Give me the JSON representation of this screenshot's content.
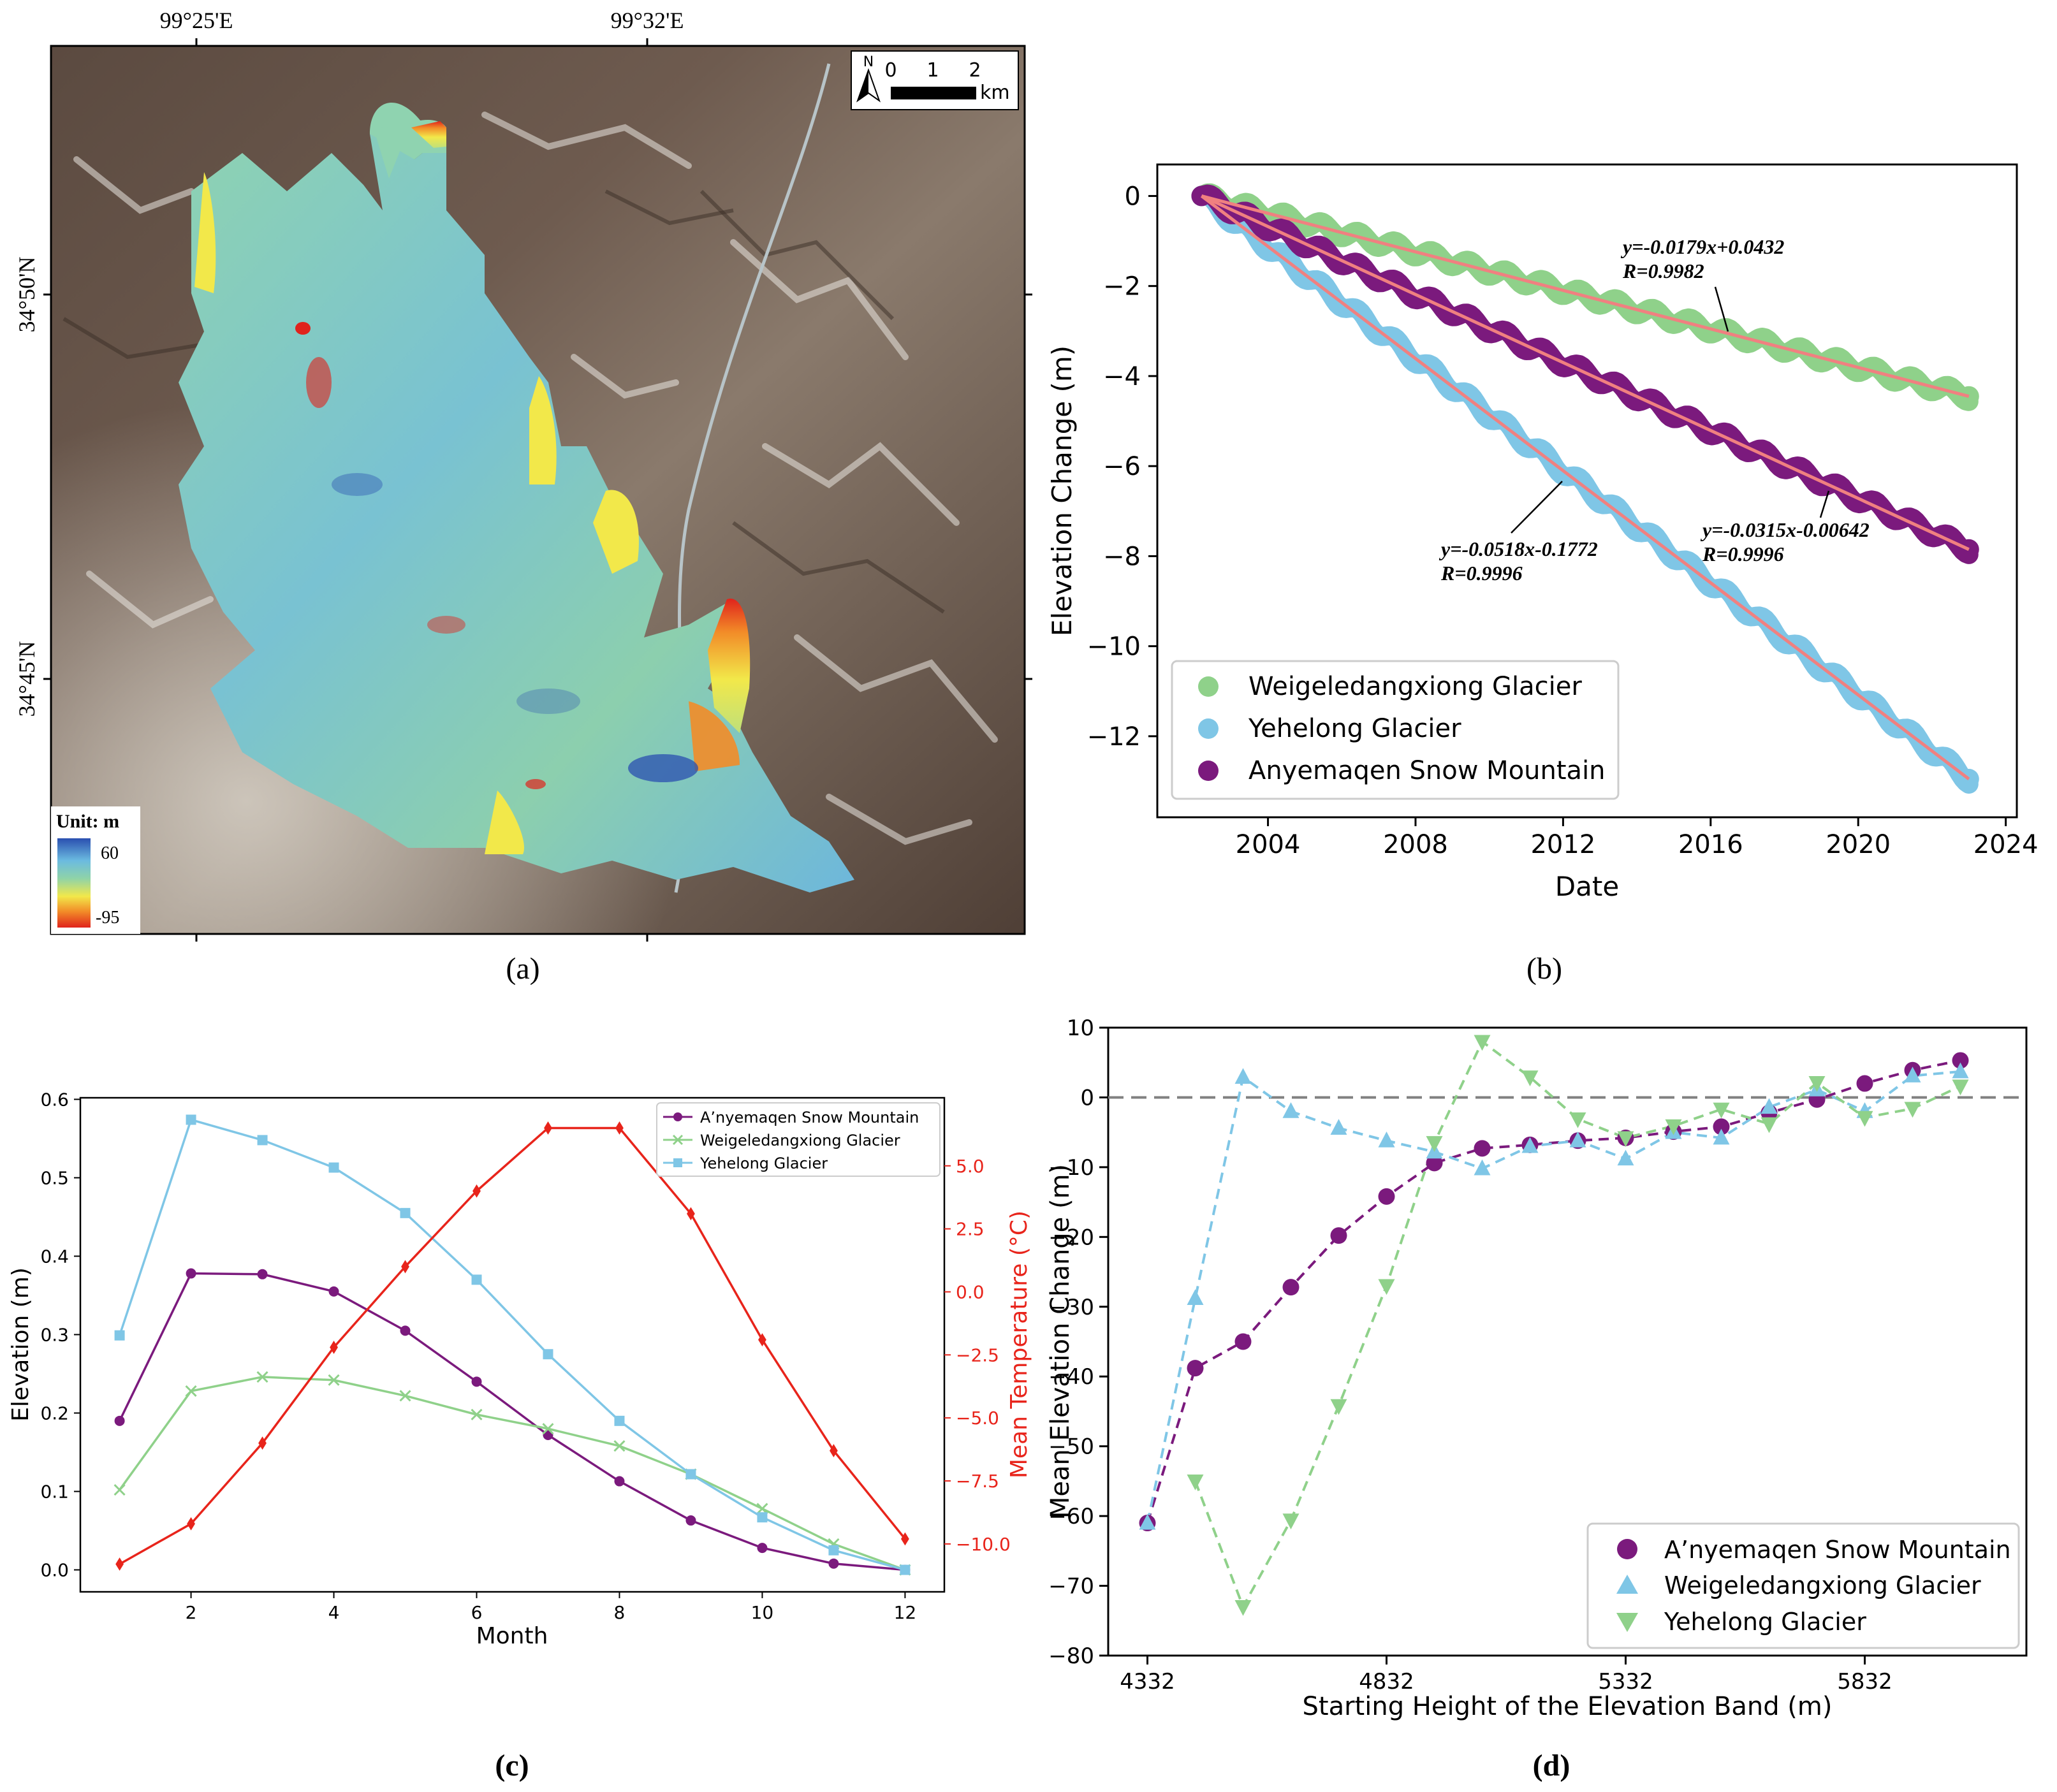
{
  "figure_labels": {
    "a": "(a)",
    "b": "(b)",
    "c": "(c)",
    "d": "(d)"
  },
  "map_a": {
    "lon_labels": [
      "99°25'E",
      "99°32'E"
    ],
    "lat_labels": [
      "34°50'N",
      "34°45'N"
    ],
    "north_symbol": "N",
    "scale_labels": [
      "0",
      "1",
      "2"
    ],
    "scale_unit": "km",
    "legend_title": "Unit: m",
    "legend_max": "60",
    "legend_min": "-95",
    "colors": {
      "high": "#2a4fb0",
      "mid_blue": "#6bbbe0",
      "mid": "#8fd3a8",
      "yellow": "#f2e84a",
      "orange": "#f28c28",
      "low": "#e0231c"
    }
  },
  "chart_data": [
    {
      "id": "b",
      "type": "line",
      "xlabel": "Date",
      "ylabel": "Elevation Change (m)",
      "xlim": [
        2001.0,
        2024.3
      ],
      "ylim": [
        -13.8,
        0.7
      ],
      "xticks": [
        2004,
        2008,
        2012,
        2016,
        2020,
        2024
      ],
      "yticks": [
        0,
        -2,
        -4,
        -6,
        -8,
        -10,
        -12
      ],
      "x_start": 2002.2,
      "x_end": 2023.0,
      "series": [
        {
          "name": "Weigeledangxiong Glacier",
          "color": "#8fd18a",
          "slope": -0.2148,
          "end_value": -4.45,
          "fit": "y=-0.0179x+0.0432",
          "r": "R=0.9982"
        },
        {
          "name": "Yehelong Glacier",
          "color": "#7fc6e6",
          "slope": -0.6216,
          "end_value": -12.95,
          "fit": "y=-0.0518x-0.1772",
          "r": "R=0.9996"
        },
        {
          "name": "Anyemaqen Snow Mountain",
          "color": "#7b1a7d",
          "slope": -0.378,
          "end_value": -7.85,
          "fit": "y=-0.0315x-0.00642",
          "r": "R=0.9996"
        }
      ],
      "fit_color": "#f08080",
      "legend_position": "lower-left"
    },
    {
      "id": "c",
      "type": "line",
      "xlabel": "Month",
      "ylabel": "Elevation (m)",
      "y2label": "Mean Temperature (°C)",
      "x": [
        1,
        2,
        3,
        4,
        5,
        6,
        7,
        8,
        9,
        10,
        11,
        12
      ],
      "xlim": [
        0.45,
        12.55
      ],
      "ylim": [
        -0.028,
        0.602
      ],
      "y2lim": [
        -11.9,
        7.7
      ],
      "xticks": [
        2,
        4,
        6,
        8,
        10,
        12
      ],
      "yticks": [
        0.0,
        0.1,
        0.2,
        0.3,
        0.4,
        0.5,
        0.6
      ],
      "ytick_labels": [
        "0.0",
        "0.1",
        "0.2",
        "0.3",
        "0.4",
        "0.5",
        "0.6"
      ],
      "y2ticks": [
        5.0,
        2.5,
        0.0,
        -2.5,
        -5.0,
        -7.5,
        -10.0
      ],
      "y2tick_labels": [
        "5.0",
        "2.5",
        "0.0",
        "−2.5",
        "−5.0",
        "−7.5",
        "−10.0"
      ],
      "series": [
        {
          "name": "A’nyemaqen Snow Mountain",
          "color": "#7b1a7d",
          "marker": "circle",
          "values": [
            0.19,
            0.378,
            0.377,
            0.355,
            0.305,
            0.24,
            0.172,
            0.113,
            0.063,
            0.028,
            0.008,
            0.0
          ]
        },
        {
          "name": "Weigeledangxiong Glacier",
          "color": "#8fd18a",
          "marker": "x",
          "values": [
            0.102,
            0.228,
            0.246,
            0.242,
            0.222,
            0.198,
            0.18,
            0.158,
            0.122,
            0.078,
            0.033,
            0.0
          ]
        },
        {
          "name": "Yehelong Glacier",
          "color": "#7fc6e6",
          "marker": "square",
          "values": [
            0.299,
            0.574,
            0.548,
            0.513,
            0.455,
            0.37,
            0.275,
            0.19,
            0.122,
            0.067,
            0.025,
            0.0
          ]
        }
      ],
      "temperature": {
        "name": "Mean Temperature",
        "color": "#e8241b",
        "marker": "diamond",
        "values": [
          -10.8,
          -9.2,
          -6.0,
          -2.2,
          1.0,
          4.0,
          6.5,
          6.5,
          3.1,
          -1.9,
          -6.3,
          -9.8
        ]
      },
      "legend_position": "top-right"
    },
    {
      "id": "d",
      "type": "line",
      "xlabel": "Starting Height of the Elevation Band (m)",
      "ylabel": "Mean Elevation Change (m)",
      "xlim": [
        4250,
        6170
      ],
      "ylim": [
        -80,
        10
      ],
      "xticks": [
        4332,
        4832,
        5332,
        5832
      ],
      "yticks": [
        10,
        0,
        -10,
        -20,
        -30,
        -40,
        -50,
        -60,
        -70,
        -80
      ],
      "ytick_labels": [
        "10",
        "0",
        "−10",
        "−20",
        "−30",
        "−40",
        "−50",
        "−60",
        "−70",
        "−80"
      ],
      "reference_line": 0,
      "series": [
        {
          "name": "A’nyemaqen Snow Mountain",
          "color": "#7b1a7d",
          "marker": "circle",
          "x": [
            4332,
            4432,
            4532,
            4632,
            4732,
            4832,
            4932,
            5032,
            5132,
            5232,
            5332,
            5432,
            5532,
            5632,
            5732,
            5832,
            5932,
            6032
          ],
          "values": [
            -61,
            -38.8,
            -35,
            -27.2,
            -19.8,
            -14.2,
            -9.4,
            -7.3,
            -6.8,
            -6.2,
            -5.8,
            -4.9,
            -4.2,
            -2.2,
            -0.3,
            2.0,
            3.9,
            5.3
          ]
        },
        {
          "name": "Weigeledangxiong Glacier",
          "color": "#7fc6e6",
          "marker": "triangle-up",
          "x": [
            4332,
            4432,
            4532,
            4632,
            4732,
            4832,
            4932,
            5032,
            5132,
            5232,
            5332,
            5432,
            5532,
            5632,
            5732,
            5832,
            5932,
            6032
          ],
          "values": [
            -61,
            -28.8,
            2.9,
            -2.0,
            -4.4,
            -6.2,
            -7.8,
            -10.2,
            -7.0,
            -6.2,
            -8.8,
            -5.0,
            -5.8,
            -1.4,
            1.1,
            -2.0,
            3.1,
            3.7
          ]
        },
        {
          "name": "Yehelong Glacier",
          "color": "#8fd18a",
          "marker": "triangle-down",
          "x": [
            4432,
            4532,
            4632,
            4732,
            4832,
            4932,
            5032,
            5132,
            5232,
            5332,
            5432,
            5532,
            5632,
            5732,
            5832,
            5932,
            6032
          ],
          "values": [
            -55.0,
            -73.0,
            -60.6,
            -44.2,
            -27.0,
            -6.5,
            8.0,
            2.9,
            -3.1,
            -5.8,
            -4.1,
            -1.7,
            -3.8,
            2.1,
            -2.9,
            -1.6,
            1.6
          ]
        }
      ],
      "legend_position": "lower-right"
    }
  ]
}
